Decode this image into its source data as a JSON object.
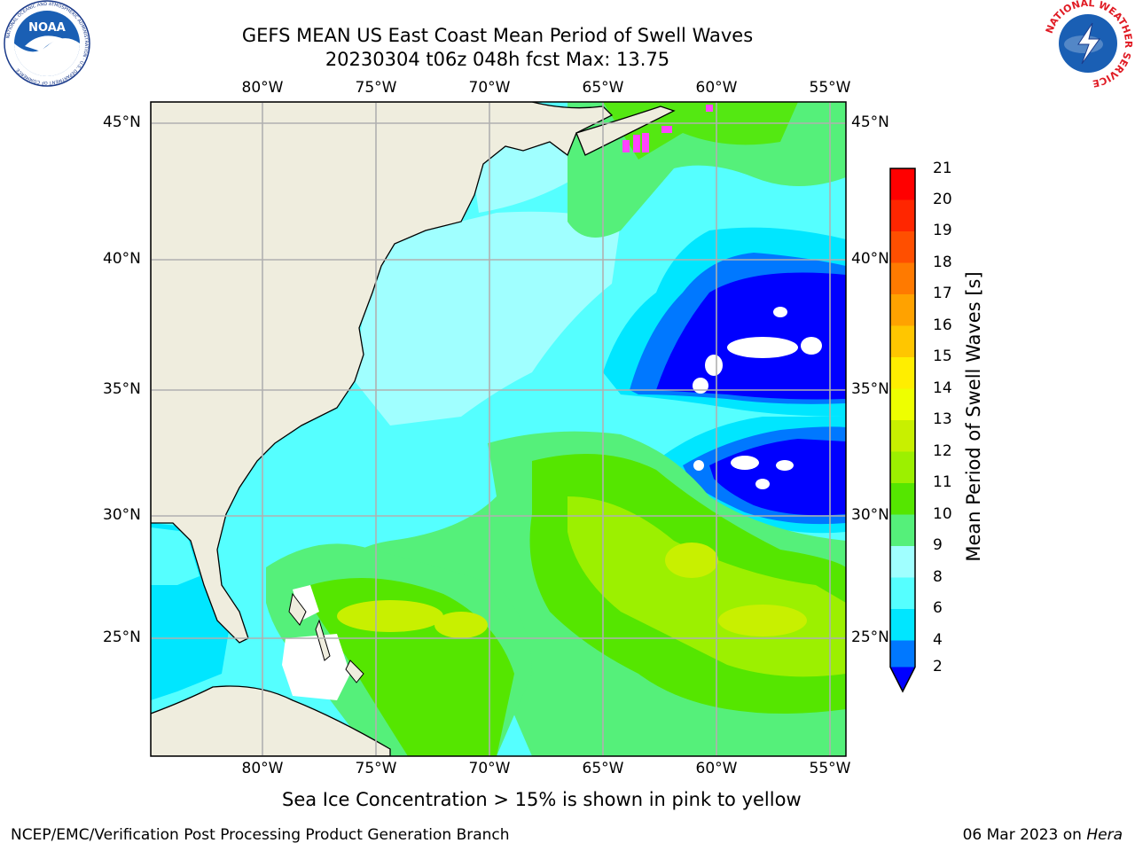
{
  "header": {
    "title_line1": "GEFS MEAN US East Coast Mean Period of Swell Waves",
    "title_line2": "20230304 t06z 048h fcst   Max: 13.75"
  },
  "logos": {
    "left": {
      "icon": "noaa-logo",
      "text": "NOAA",
      "ring_text": "NATIONAL OCEANIC AND ATMOSPHERIC ADMINISTRATION · U.S. DEPARTMENT OF COMMERCE"
    },
    "right": {
      "icon": "nws-logo",
      "ring_text": "NATIONAL WEATHER SERVICE"
    }
  },
  "map": {
    "lon_labels": [
      "80°W",
      "75°W",
      "70°W",
      "65°W",
      "60°W",
      "55°W"
    ],
    "lat_labels": [
      "45°N",
      "40°N",
      "35°N",
      "30°N",
      "25°N"
    ],
    "colors": {
      "land": "#efedde",
      "grid": "#b0b0b0",
      "coast": "#000000"
    }
  },
  "colorbar": {
    "label": "Mean Period of Swell Waves [s]",
    "ticks": [
      "21",
      "20",
      "19",
      "18",
      "17",
      "16",
      "15",
      "14",
      "13",
      "12",
      "11",
      "10",
      "9",
      "8",
      "6",
      "4",
      "2"
    ],
    "colors": [
      "#ff0000",
      "#ff2600",
      "#ff4f00",
      "#ff7a00",
      "#ffa200",
      "#ffc600",
      "#ffee00",
      "#eeff00",
      "#c8f000",
      "#9cf000",
      "#55e600",
      "#00dc00",
      "#55f07a",
      "#a0ffff",
      "#55ffff",
      "#00e6ff",
      "#0078ff"
    ],
    "extend_color": "#0000ff"
  },
  "footnote": "Sea Ice Concentration > 15% is shown in pink to yellow",
  "footer": {
    "left": "NCEP/EMC/Verification Post Processing Product Generation Branch",
    "right_date": "06 Mar 2023 on ",
    "right_host": "Hera"
  }
}
